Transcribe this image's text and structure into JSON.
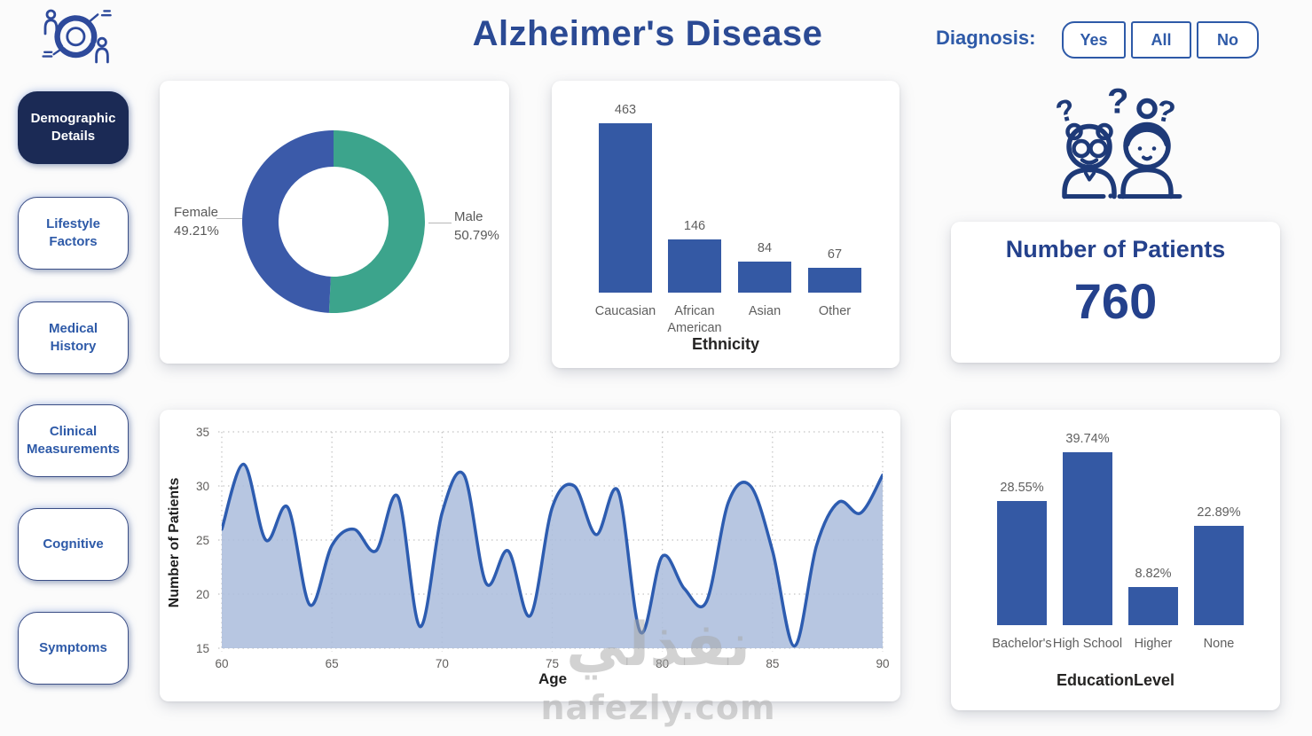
{
  "header": {
    "title": "Alzheimer's Disease",
    "diagnosis_label": "Diagnosis:",
    "filter_buttons": [
      "Yes",
      "All",
      "No"
    ]
  },
  "sidebar": {
    "items": [
      {
        "label": "Demographic Details",
        "active": true
      },
      {
        "label": "Lifestyle Factors",
        "active": false
      },
      {
        "label": "Medical History",
        "active": false
      },
      {
        "label": "Clinical Measurements",
        "active": false
      },
      {
        "label": "Cognitive",
        "active": false
      },
      {
        "label": "Symptoms",
        "active": false
      }
    ]
  },
  "kpi": {
    "title": "Number of Patients",
    "value": "760"
  },
  "watermark": {
    "logo_text": "نفذلي",
    "site_text": "nafezly.com"
  },
  "colors": {
    "navy": "#1b2a55",
    "accent_blue": "#2e5aa8",
    "title_blue": "#2b4a94",
    "kpi_blue": "#24418c",
    "icon_navy": "#1e3a78",
    "donut_blue": "#3b5aa9",
    "donut_teal": "#3ca48c",
    "bar_blue": "#3459a4",
    "line_blue": "#2d5cb0",
    "area_fill": "#adbedd",
    "label_gray": "#5f5f5f",
    "axis_text": "#252423"
  },
  "chart_data": [
    {
      "id": "gender_donut",
      "type": "pie",
      "donut": true,
      "slices": [
        {
          "label": "Female",
          "value": 49.21,
          "display": "49.21%",
          "color": "#3b5aa9"
        },
        {
          "label": "Male",
          "value": 50.79,
          "display": "50.79%",
          "color": "#3ca48c"
        }
      ]
    },
    {
      "id": "ethnicity_bar",
      "type": "bar",
      "categories": [
        "Caucasian",
        "African American",
        "Asian",
        "Other"
      ],
      "values": [
        463,
        146,
        84,
        67
      ],
      "value_labels": [
        "463",
        "146",
        "84",
        "67"
      ],
      "xlabel": "Ethnicity",
      "bar_color": "#3459a4"
    },
    {
      "id": "age_area",
      "type": "area",
      "x": [
        60,
        61,
        62,
        63,
        64,
        65,
        66,
        67,
        68,
        69,
        70,
        71,
        72,
        73,
        74,
        75,
        76,
        77,
        78,
        79,
        80,
        81,
        82,
        83,
        84,
        85,
        86,
        87,
        88,
        89,
        90
      ],
      "values": [
        26,
        32,
        25,
        28,
        19,
        24.5,
        26,
        24,
        29,
        17,
        27.5,
        31,
        21,
        24,
        18,
        28,
        30,
        25.5,
        29.5,
        16.5,
        23.5,
        20.5,
        19.3,
        28.5,
        30,
        24,
        15.2,
        24.5,
        28.5,
        27.5,
        31
      ],
      "xlabel": "Age",
      "ylabel": "Number of Patients",
      "xlim": [
        60,
        90
      ],
      "ylim": [
        15,
        35
      ],
      "xticks": [
        60,
        65,
        70,
        75,
        80,
        85,
        90
      ],
      "yticks": [
        15,
        20,
        25,
        30,
        35
      ],
      "grid": "dotted",
      "line_color": "#2d5cb0",
      "fill_color": "#adbedd"
    },
    {
      "id": "education_bar",
      "type": "bar",
      "categories": [
        "Bachelor's",
        "High School",
        "Higher",
        "None"
      ],
      "values": [
        28.55,
        39.74,
        8.82,
        22.89
      ],
      "value_labels": [
        "28.55%",
        "39.74%",
        "8.82%",
        "22.89%"
      ],
      "xlabel": "EducationLevel",
      "bar_color": "#3459a4"
    }
  ]
}
